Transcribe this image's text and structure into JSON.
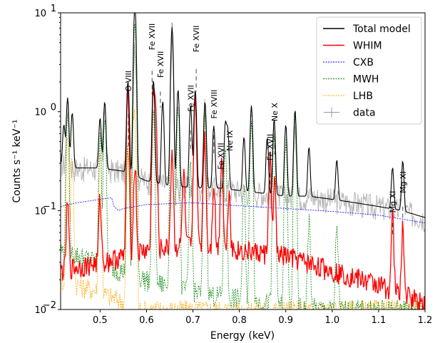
{
  "chart_data": {
    "type": "line",
    "xlabel": "Energy (keV)",
    "ylabel": "Counts s⁻¹ keV⁻¹",
    "xlim": [
      0.415,
      1.2
    ],
    "ylim": [
      0.01,
      10
    ],
    "yscale": "log",
    "x_ticks": [
      0.5,
      0.6,
      0.7,
      0.8,
      0.9,
      1.0,
      1.1,
      1.2
    ],
    "x_tick_labels": [
      "0.5",
      "0.6",
      "0.7",
      "0.8",
      "0.9",
      "1.0",
      "1.1",
      "1.2"
    ],
    "y_ticks": [
      0.01,
      0.1,
      1,
      10
    ],
    "y_tick_labels": [
      {
        "base": "10",
        "exp": "−2"
      },
      {
        "base": "10",
        "exp": "−1"
      },
      {
        "base": "10",
        "exp": "0"
      },
      {
        "base": "10",
        "exp": "1"
      }
    ],
    "legend": {
      "placement": "top-right",
      "entries": [
        {
          "label": "Total model",
          "color": "#000000",
          "style": "solid"
        },
        {
          "label": "WHIM",
          "color": "#ff0000",
          "style": "solid"
        },
        {
          "label": "CXB",
          "color": "#0000ff",
          "style": "dashed"
        },
        {
          "label": "MWH",
          "color": "#008000",
          "style": "dashed"
        },
        {
          "label": "LHB",
          "color": "#ffa500",
          "style": "dashed"
        },
        {
          "label": "data",
          "color": "#999999",
          "style": "marker"
        }
      ]
    },
    "line_labels": [
      {
        "text": "O VIII",
        "energy": 0.561,
        "label_y": 1.6,
        "dash_top": 0.95,
        "dash_bottom": 0.45
      },
      {
        "text": "Fe XVII",
        "energy": 0.612,
        "label_y": 4.2,
        "dash_top": 2.6,
        "dash_bottom": 1.5
      },
      {
        "text": "Fe XVII",
        "energy": 0.63,
        "label_y": 2.2,
        "dash_top": 1.6,
        "dash_bottom": 1.1
      },
      {
        "text": "Fe XVII",
        "energy": 0.695,
        "label_y": 1.0,
        "dash_top": 0.65,
        "dash_bottom": 0.42
      },
      {
        "text": "Fe XVII",
        "energy": 0.707,
        "label_y": 4.0,
        "dash_top": 2.7,
        "dash_bottom": 1.6
      },
      {
        "text": "Fe XVIII",
        "energy": 0.745,
        "label_y": 0.85,
        "dash_top": 0.58,
        "dash_bottom": 0.38
      },
      {
        "text": "Fe XVII",
        "energy": 0.76,
        "label_y": 0.26,
        "dash_top": 0.2,
        "dash_bottom": 0.14
      },
      {
        "text": "Ne IX",
        "energy": 0.779,
        "label_y": 0.4,
        "dash_top": 0.3,
        "dash_bottom": 0.21
      },
      {
        "text": "Fe XVII",
        "energy": 0.866,
        "label_y": 0.32,
        "dash_top": 0.24,
        "dash_bottom": 0.17
      },
      {
        "text": "Ne X",
        "energy": 0.876,
        "label_y": 0.8,
        "dash_top": 0.55,
        "dash_bottom": 0.37
      },
      {
        "text": "Mg XI",
        "energy": 1.13,
        "label_y": 0.095,
        "dash_top": 0.075,
        "dash_bottom": 0.055
      },
      {
        "text": "Mg XI",
        "energy": 1.152,
        "label_y": 0.15,
        "dash_top": 0.11,
        "dash_bottom": 0.08
      }
    ],
    "series": [
      {
        "name": "Total model",
        "color": "#000000",
        "style": "solid",
        "continuum": [
          [
            0.415,
            0.3
          ],
          [
            0.45,
            0.27
          ],
          [
            0.5,
            0.27
          ],
          [
            0.55,
            0.25
          ],
          [
            0.6,
            0.2
          ],
          [
            0.65,
            0.18
          ],
          [
            0.7,
            0.17
          ],
          [
            0.75,
            0.17
          ],
          [
            0.8,
            0.16
          ],
          [
            0.85,
            0.15
          ],
          [
            0.9,
            0.14
          ],
          [
            0.95,
            0.14
          ],
          [
            1.0,
            0.13
          ],
          [
            1.05,
            0.12
          ],
          [
            1.1,
            0.11
          ],
          [
            1.15,
            0.1
          ],
          [
            1.2,
            0.085
          ]
        ],
        "peaks": [
          [
            0.422,
            0.45
          ],
          [
            0.43,
            1.1
          ],
          [
            0.44,
            0.7
          ],
          [
            0.5,
            0.6
          ],
          [
            0.51,
            1.0
          ],
          [
            0.56,
            1.8
          ],
          [
            0.575,
            5.0
          ],
          [
            0.575,
            6.8
          ],
          [
            0.615,
            1.9
          ],
          [
            0.635,
            1.1
          ],
          [
            0.655,
            7.0
          ],
          [
            0.668,
            1.5
          ],
          [
            0.695,
            1.0
          ],
          [
            0.705,
            1.5
          ],
          [
            0.726,
            1.1
          ],
          [
            0.745,
            0.55
          ],
          [
            0.77,
            0.6
          ],
          [
            0.775,
            0.5
          ],
          [
            0.81,
            0.4
          ],
          [
            0.826,
            1.0
          ],
          [
            0.86,
            0.4
          ],
          [
            0.875,
            0.7
          ],
          [
            0.9,
            0.6
          ],
          [
            0.92,
            0.9
          ],
          [
            0.95,
            0.3
          ],
          [
            1.01,
            0.2
          ],
          [
            1.13,
            0.17
          ],
          [
            1.152,
            0.22
          ]
        ]
      },
      {
        "name": "WHIM",
        "color": "#ff0000",
        "style": "solid",
        "continuum": [
          [
            0.415,
            0.025
          ],
          [
            0.5,
            0.03
          ],
          [
            0.6,
            0.04
          ],
          [
            0.7,
            0.045
          ],
          [
            0.8,
            0.04
          ],
          [
            0.9,
            0.035
          ],
          [
            1.0,
            0.025
          ],
          [
            1.1,
            0.018
          ],
          [
            1.2,
            0.012
          ]
        ],
        "peaks": [
          [
            0.43,
            0.09
          ],
          [
            0.5,
            0.1
          ],
          [
            0.56,
            1.5
          ],
          [
            0.575,
            0.25
          ],
          [
            0.615,
            1.8
          ],
          [
            0.62,
            0.9
          ],
          [
            0.655,
            0.35
          ],
          [
            0.68,
            0.2
          ],
          [
            0.705,
            1.4
          ],
          [
            0.725,
            0.5
          ],
          [
            0.745,
            0.15
          ],
          [
            0.762,
            0.32
          ],
          [
            0.778,
            0.12
          ],
          [
            0.866,
            0.3
          ],
          [
            0.876,
            0.15
          ],
          [
            1.13,
            0.07
          ],
          [
            1.152,
            0.05
          ]
        ]
      },
      {
        "name": "CXB",
        "color": "#0000ff",
        "style": "dashed",
        "continuum": [
          [
            0.415,
            0.11
          ],
          [
            0.45,
            0.12
          ],
          [
            0.5,
            0.13
          ],
          [
            0.525,
            0.135
          ],
          [
            0.53,
            0.11
          ],
          [
            0.54,
            0.1
          ],
          [
            0.55,
            0.105
          ],
          [
            0.6,
            0.115
          ],
          [
            0.7,
            0.12
          ],
          [
            0.8,
            0.112
          ],
          [
            0.9,
            0.105
          ],
          [
            1.0,
            0.098
          ],
          [
            1.1,
            0.09
          ],
          [
            1.2,
            0.075
          ]
        ],
        "peaks": []
      },
      {
        "name": "MWH",
        "color": "#008000",
        "style": "dashed",
        "continuum": [
          [
            0.415,
            0.04
          ],
          [
            0.5,
            0.03
          ],
          [
            0.6,
            0.02
          ],
          [
            0.7,
            0.015
          ],
          [
            0.8,
            0.013
          ],
          [
            0.9,
            0.011
          ],
          [
            1.0,
            0.01
          ],
          [
            1.2,
            0.01
          ]
        ],
        "peaks": [
          [
            0.43,
            1.0
          ],
          [
            0.5,
            0.5
          ],
          [
            0.51,
            0.9
          ],
          [
            0.56,
            0.4
          ],
          [
            0.575,
            7.0
          ],
          [
            0.615,
            0.9
          ],
          [
            0.655,
            7.0
          ],
          [
            0.668,
            1.2
          ],
          [
            0.695,
            0.3
          ],
          [
            0.726,
            1.0
          ],
          [
            0.77,
            0.45
          ],
          [
            0.81,
            0.15
          ],
          [
            0.826,
            0.9
          ],
          [
            0.875,
            0.6
          ],
          [
            0.9,
            0.5
          ],
          [
            0.92,
            0.8
          ],
          [
            0.95,
            0.07
          ],
          [
            1.01,
            0.06
          ]
        ]
      },
      {
        "name": "LHB",
        "color": "#ffa500",
        "style": "dashed",
        "continuum": [
          [
            0.415,
            0.02
          ],
          [
            0.45,
            0.018
          ],
          [
            0.5,
            0.015
          ],
          [
            0.55,
            0.012
          ],
          [
            0.58,
            0.01
          ],
          [
            0.6,
            0.01
          ]
        ],
        "peaks": [
          [
            0.43,
            0.6
          ],
          [
            0.44,
            0.3
          ],
          [
            0.5,
            0.4
          ],
          [
            0.56,
            0.35
          ],
          [
            0.57,
            0.9
          ],
          [
            0.575,
            0.8
          ]
        ]
      },
      {
        "name": "data",
        "color": "#999999",
        "style": "marker",
        "continuum": [
          [
            0.415,
            0.3
          ],
          [
            0.45,
            0.27
          ],
          [
            0.5,
            0.27
          ],
          [
            0.55,
            0.25
          ],
          [
            0.6,
            0.2
          ],
          [
            0.65,
            0.18
          ],
          [
            0.7,
            0.17
          ],
          [
            0.75,
            0.17
          ],
          [
            0.8,
            0.16
          ],
          [
            0.85,
            0.15
          ],
          [
            0.9,
            0.14
          ],
          [
            0.95,
            0.14
          ],
          [
            1.0,
            0.13
          ],
          [
            1.05,
            0.12
          ],
          [
            1.1,
            0.11
          ],
          [
            1.15,
            0.1
          ],
          [
            1.2,
            0.085
          ]
        ],
        "peaks": [
          [
            0.43,
            0.9
          ],
          [
            0.5,
            0.5
          ],
          [
            0.51,
            0.8
          ],
          [
            0.56,
            1.4
          ],
          [
            0.575,
            4.5
          ],
          [
            0.615,
            1.5
          ],
          [
            0.655,
            5.0
          ],
          [
            0.705,
            1.2
          ],
          [
            0.726,
            0.9
          ],
          [
            0.826,
            0.8
          ],
          [
            0.875,
            0.6
          ],
          [
            0.92,
            0.7
          ],
          [
            1.152,
            0.2
          ]
        ]
      }
    ]
  }
}
